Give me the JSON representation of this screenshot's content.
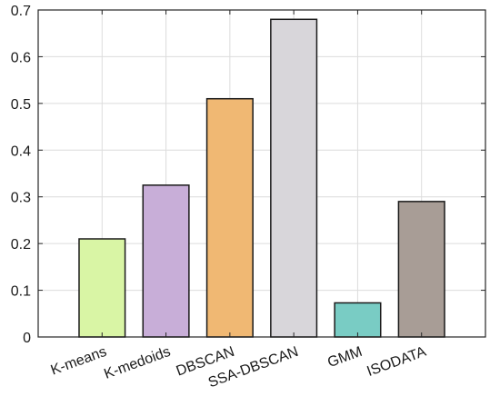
{
  "chart_data": {
    "type": "bar",
    "categories": [
      "K-means",
      "K-medoids",
      "DBSCAN",
      "SSA-DBSCAN",
      "GMM",
      "ISODATA"
    ],
    "values": [
      0.21,
      0.325,
      0.51,
      0.68,
      0.073,
      0.29
    ],
    "colors": [
      "#d9f5a5",
      "#c8aed8",
      "#f0b873",
      "#d8d6da",
      "#79ccc4",
      "#a89d96"
    ],
    "yticks": [
      "0",
      "0.1",
      "0.2",
      "0.3",
      "0.4",
      "0.5",
      "0.6",
      "0.7"
    ],
    "ylim": [
      0,
      0.7
    ],
    "grid": true,
    "title": "",
    "xlabel": "",
    "ylabel": ""
  }
}
